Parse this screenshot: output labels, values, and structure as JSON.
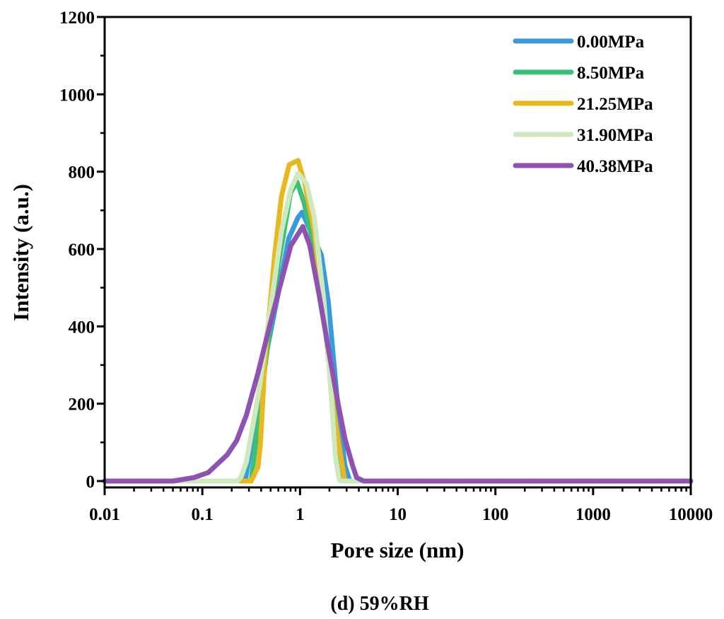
{
  "chart_data": {
    "type": "line",
    "xlabel": "Pore size (nm)",
    "ylabel": "Intensity (a.u.)",
    "caption": "(d) 59%RH",
    "xscale": "log",
    "xlim": [
      0.01,
      10000
    ],
    "ylim": [
      0,
      1200
    ],
    "x_ticks": [
      "0.01",
      "0.1",
      "1",
      "10",
      "100",
      "1000",
      "10000"
    ],
    "y_ticks": [
      "0",
      "200",
      "400",
      "600",
      "800",
      "1000",
      "1200"
    ],
    "grid": false,
    "legend_position": "top-right",
    "series": [
      {
        "name": "0.00MPa",
        "color": "#3a9bdc",
        "x": [
          0.01,
          0.275,
          0.436,
          0.575,
          0.766,
          0.955,
          1.05,
          1.65,
          1.95,
          2.45,
          2.88,
          3.24,
          10000
        ],
        "y": [
          0,
          0,
          310,
          463,
          627,
          682,
          695,
          585,
          463,
          188,
          40,
          0,
          0
        ]
      },
      {
        "name": "8.50MPa",
        "color": "#3cbf78",
        "x": [
          0.01,
          0.316,
          0.44,
          0.6,
          0.8,
          0.93,
          1.1,
          1.4,
          1.76,
          2.19,
          2.6,
          2.82,
          10000
        ],
        "y": [
          0,
          0,
          300,
          560,
          745,
          774,
          720,
          600,
          433,
          188,
          40,
          0,
          0
        ]
      },
      {
        "name": "21.25MPa",
        "color": "#e8b91e",
        "x": [
          0.01,
          0.316,
          0.372,
          0.394,
          0.437,
          0.55,
          0.646,
          0.776,
          0.955,
          1.12,
          1.4,
          1.76,
          2.19,
          2.72,
          2.88,
          10000
        ],
        "y": [
          0,
          0,
          37,
          97,
          311,
          585,
          737,
          818,
          829,
          768,
          646,
          433,
          188,
          37,
          0,
          0
        ]
      },
      {
        "name": "31.90MPa",
        "color": "#cde9bd",
        "x": [
          0.01,
          0.23,
          0.251,
          0.282,
          0.372,
          0.49,
          0.646,
          0.805,
          0.955,
          1.17,
          1.4,
          1.76,
          2.09,
          2.29,
          2.51,
          2.6,
          10000
        ],
        "y": [
          0,
          0,
          13,
          49,
          219,
          433,
          646,
          755,
          796,
          768,
          682,
          463,
          219,
          68,
          5,
          0,
          0
        ]
      },
      {
        "name": "40.38MPa",
        "color": "#8e53b1",
        "x": [
          0.01,
          0.05,
          0.082,
          0.115,
          0.18,
          0.224,
          0.282,
          0.372,
          0.49,
          0.646,
          0.805,
          1.07,
          1.26,
          1.57,
          1.95,
          2.45,
          2.88,
          3.43,
          3.8,
          4.5,
          10000
        ],
        "y": [
          0,
          0,
          9,
          22,
          68,
          104,
          170,
          280,
          402,
          518,
          609,
          658,
          609,
          481,
          342,
          201,
          110,
          42,
          9,
          0,
          0
        ]
      }
    ]
  }
}
